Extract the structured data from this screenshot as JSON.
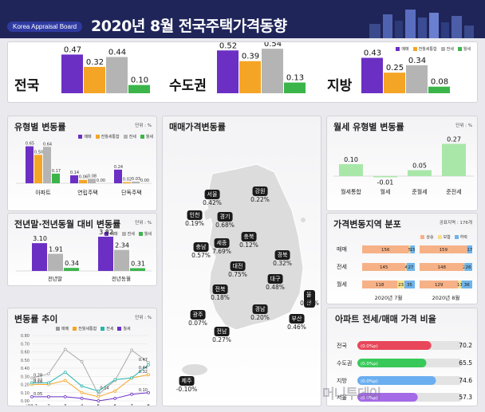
{
  "header": {
    "badge": "Korea Appraisal Board",
    "title": "2020년 8월  전국주택가격동향"
  },
  "legend": {
    "sale": "매매",
    "mixed": "전월세통합",
    "jeonse": "전세",
    "monthly": "월세"
  },
  "colors": {
    "sale": "#6b2fc4",
    "mixed": "#f5a526",
    "jeonse": "#b4b4b4",
    "monthly": "#3bb54a",
    "pale_green": "#a9e7a9"
  },
  "summary": [
    {
      "region": "전국",
      "values": [
        0.47,
        0.32,
        0.44,
        0.1
      ],
      "labels": [
        "0.47",
        "0.32",
        "0.44",
        "0.10"
      ]
    },
    {
      "region": "수도권",
      "values": [
        0.52,
        0.39,
        0.54,
        0.13
      ],
      "labels": [
        "0.52",
        "0.39",
        "0.54",
        "0.13"
      ]
    },
    {
      "region": "지방",
      "values": [
        0.43,
        0.25,
        0.34,
        0.08
      ],
      "labels": [
        "0.43",
        "0.25",
        "0.34",
        "0.08"
      ]
    }
  ],
  "type_change": {
    "title": "유형별 변동률",
    "unit": "단위 : %",
    "chart_data": {
      "type": "bar",
      "categories": [
        "아파트",
        "연립주택",
        "단독주택"
      ],
      "series": [
        {
          "name": "매매",
          "values": [
            0.65,
            0.14,
            0.24
          ],
          "labels": [
            "0.65",
            "0.14",
            "0.24"
          ]
        },
        {
          "name": "전월세통합",
          "values": [
            0.5,
            0.06,
            0.02
          ],
          "labels": [
            "0.50",
            "0.06",
            "0.02"
          ]
        },
        {
          "name": "전세",
          "values": [
            0.64,
            0.08,
            0.03
          ],
          "labels": [
            "0.64",
            "0.08",
            "0.03"
          ]
        },
        {
          "name": "월세",
          "values": [
            0.17,
            0.0,
            0.0
          ],
          "labels": [
            "0.17",
            "0.00",
            "0.00"
          ]
        }
      ]
    }
  },
  "prev_compare": {
    "title": "전년말·전년동월 대비 변동률",
    "unit": "단위 : %",
    "chart_data": {
      "type": "bar",
      "categories": [
        "전년말",
        "전년동월"
      ],
      "series": [
        {
          "name": "매매",
          "values": [
            3.1,
            3.82
          ],
          "labels": [
            "3.10",
            "3.82"
          ]
        },
        {
          "name": "전세",
          "values": [
            1.91,
            2.34
          ],
          "labels": [
            "1.91",
            "2.34"
          ]
        },
        {
          "name": "월세",
          "values": [
            0.34,
            0.31
          ],
          "labels": [
            "0.34",
            "0.31"
          ]
        }
      ]
    }
  },
  "trend": {
    "title": "변동률 추이",
    "unit": "단위 : %",
    "chart_data": {
      "type": "line",
      "x": [
        "'19.2",
        "2",
        "3",
        "4",
        "5",
        "6",
        "7",
        "8"
      ],
      "ylim": [
        0,
        0.8
      ],
      "yticks": [
        "0.00",
        "0.10",
        "0.20",
        "0.30",
        "0.40",
        "0.50",
        "0.60",
        "0.70",
        "0.80"
      ],
      "series": [
        {
          "name": "매매",
          "values": [
            0.28,
            0.33,
            0.63,
            0.48,
            0.08,
            0.25,
            0.62,
            0.47
          ]
        },
        {
          "name": "전월세통합",
          "values": [
            0.2,
            0.2,
            0.25,
            0.1,
            0.05,
            0.12,
            0.28,
            0.32
          ]
        },
        {
          "name": "전세",
          "values": [
            0.22,
            0.22,
            0.35,
            0.18,
            0.12,
            0.26,
            0.28,
            0.44
          ]
        },
        {
          "name": "월세",
          "values": [
            0.05,
            0.05,
            0.05,
            0.03,
            0.0,
            0.03,
            0.08,
            0.1
          ]
        }
      ],
      "start_labels": [
        "0.28",
        "0.22",
        "0.20",
        "0.05"
      ],
      "end_labels": [
        "0.47",
        "0.44",
        "0.32",
        "0.10"
      ],
      "mid_label": "0.14"
    }
  },
  "map": {
    "title": "매매가격변동률",
    "regions": [
      {
        "name": "서울",
        "value": "0.42%"
      },
      {
        "name": "인천",
        "value": "0.19%"
      },
      {
        "name": "경기",
        "value": "0.68%"
      },
      {
        "name": "강원",
        "value": "0.22%"
      },
      {
        "name": "세종",
        "value": "7.69%"
      },
      {
        "name": "충북",
        "value": "0.12%"
      },
      {
        "name": "충남",
        "value": "0.57%"
      },
      {
        "name": "대전",
        "value": "0.75%"
      },
      {
        "name": "경북",
        "value": "0.32%"
      },
      {
        "name": "전북",
        "value": "0.18%"
      },
      {
        "name": "대구",
        "value": "0.48%"
      },
      {
        "name": "울산",
        "value": "0.43%"
      },
      {
        "name": "광주",
        "value": "0.07%"
      },
      {
        "name": "경남",
        "value": "0.20%"
      },
      {
        "name": "부산",
        "value": "0.46%"
      },
      {
        "name": "전남",
        "value": "0.27%"
      },
      {
        "name": "제주",
        "value": "-0.10%"
      }
    ]
  },
  "monthly_type": {
    "title": "월세 유형별 변동률",
    "unit": "단위 : %",
    "chart_data": {
      "type": "bar",
      "categories": [
        "월세통합",
        "월세",
        "준월세",
        "준전세"
      ],
      "values": [
        0.1,
        -0.01,
        0.05,
        0.27
      ],
      "labels": [
        "0.10",
        "-0.01",
        "0.05",
        "0.27"
      ]
    }
  },
  "dist": {
    "title": "가격변동지역 분포",
    "note": "공표지역 : 176개",
    "legend": [
      "상승",
      "보합",
      "하락"
    ],
    "colors": [
      "#f6b187",
      "#f5e08a",
      "#6fb4ea"
    ],
    "chart_data": {
      "type": "bar",
      "rows": [
        "매매",
        "전세",
        "월세"
      ],
      "columns": [
        "2020년 7월",
        "2020년 8월"
      ],
      "data": [
        [
          [
            156,
            5,
            15
          ],
          [
            159,
            0,
            17
          ]
        ],
        [
          [
            145,
            4,
            27
          ],
          [
            148,
            2,
            26
          ]
        ],
        [
          [
            118,
            23,
            35
          ],
          [
            129,
            11,
            36
          ]
        ]
      ]
    }
  },
  "apt_ratio": {
    "title": "아파트 전세/매매 가격 비율",
    "chart_data": {
      "type": "bar",
      "categories": [
        "전국",
        "수도권",
        "지방",
        "서울"
      ],
      "values": [
        70.2,
        65.5,
        74.6,
        57.3
      ],
      "labels": [
        "70.2",
        "65.5",
        "74.6",
        "57.3"
      ],
      "change": [
        "(0.0%p)",
        "(0.0%p)",
        "(0.0%p)",
        "(0.0%p)"
      ],
      "colors": [
        "#e8475b",
        "#38c95a",
        "#6aaef0",
        "#a56ae6"
      ]
    }
  },
  "watermark": "머니투데이"
}
